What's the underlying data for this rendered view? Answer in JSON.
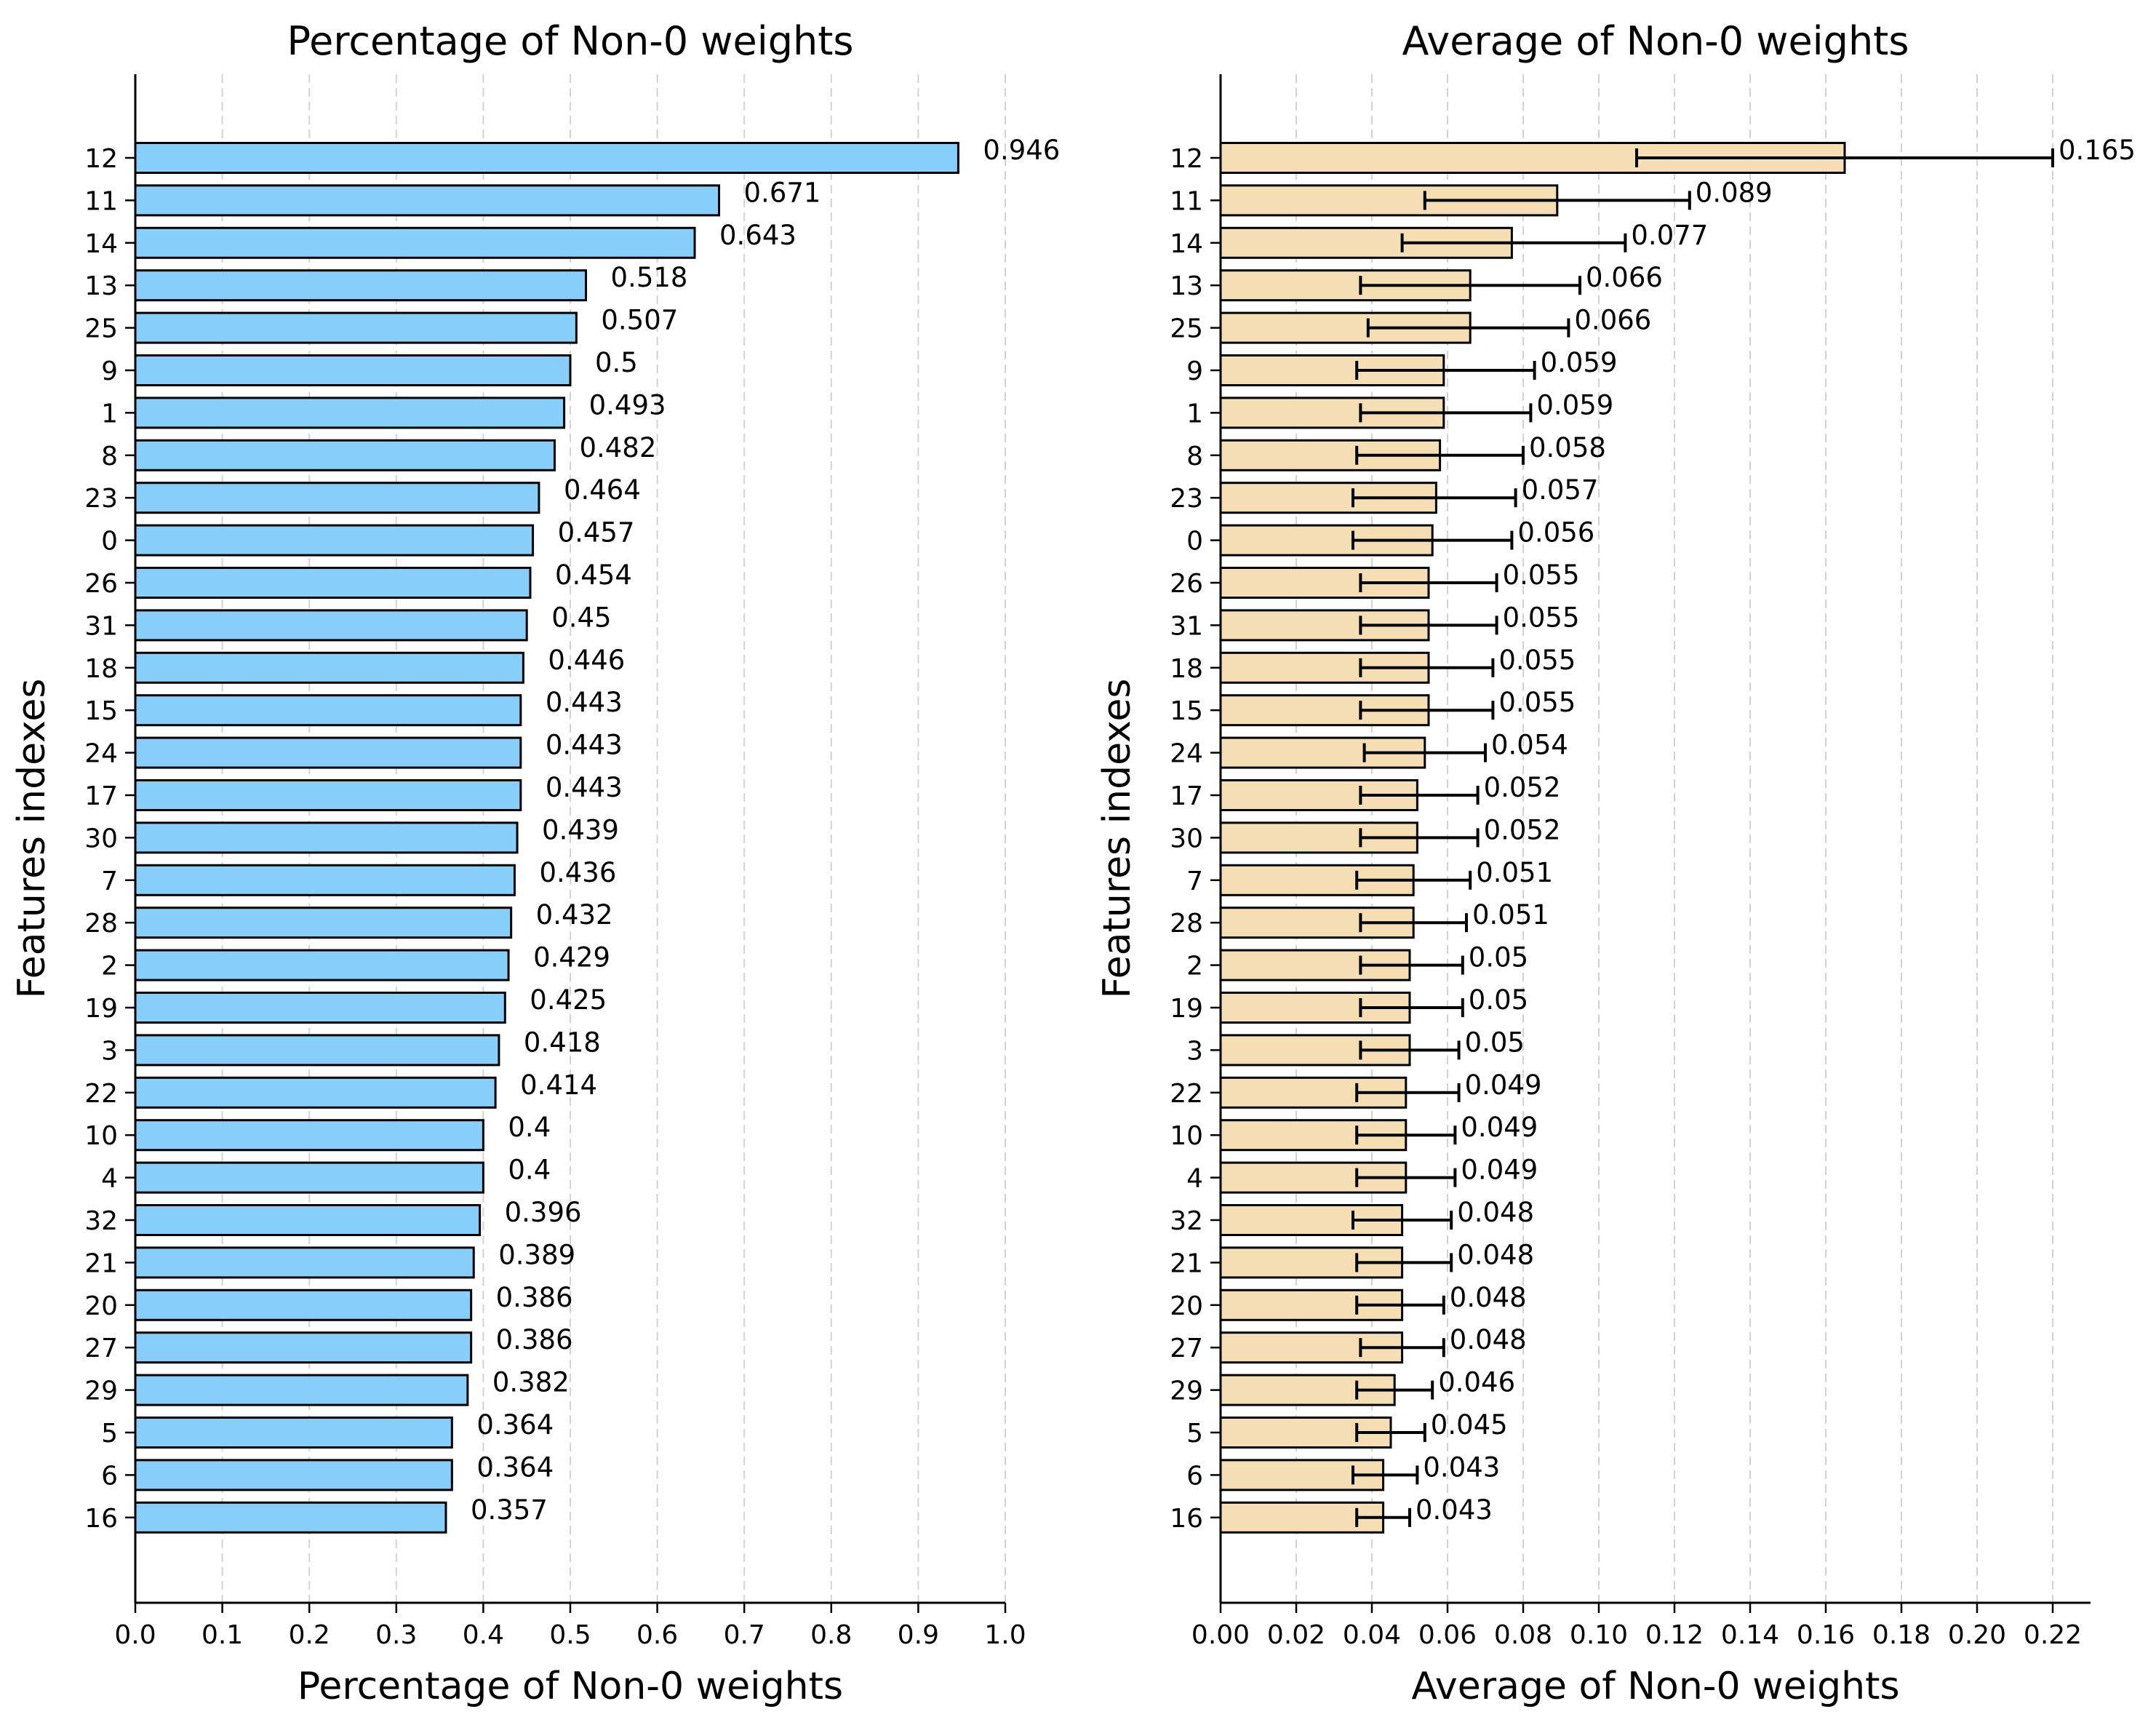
{
  "chart_data": [
    {
      "type": "bar",
      "orientation": "horizontal",
      "title": "Percentage of Non-0 weights",
      "xlabel": "Percentage of Non-0 weights",
      "ylabel": "Features indexes",
      "xlim": [
        0,
        1.0
      ],
      "xticks": [
        0.0,
        0.1,
        0.2,
        0.3,
        0.4,
        0.5,
        0.6,
        0.7,
        0.8,
        0.9,
        1.0
      ],
      "xtick_labels": [
        "0.0",
        "0.1",
        "0.2",
        "0.3",
        "0.4",
        "0.5",
        "0.6",
        "0.7",
        "0.8",
        "0.9",
        "1.0"
      ],
      "grid": "vertical dashed",
      "bar_color": "#87cefa",
      "categories": [
        "12",
        "11",
        "14",
        "13",
        "25",
        "9",
        "1",
        "8",
        "23",
        "0",
        "26",
        "31",
        "18",
        "15",
        "24",
        "17",
        "30",
        "7",
        "28",
        "2",
        "19",
        "3",
        "22",
        "10",
        "4",
        "32",
        "21",
        "20",
        "27",
        "29",
        "5",
        "6",
        "16"
      ],
      "values": [
        0.946,
        0.671,
        0.643,
        0.518,
        0.507,
        0.5,
        0.493,
        0.482,
        0.464,
        0.457,
        0.454,
        0.45,
        0.446,
        0.443,
        0.443,
        0.443,
        0.439,
        0.436,
        0.432,
        0.429,
        0.425,
        0.418,
        0.414,
        0.4,
        0.4,
        0.396,
        0.389,
        0.386,
        0.386,
        0.382,
        0.364,
        0.364,
        0.357
      ],
      "value_labels": [
        "0.946",
        "0.671",
        "0.643",
        "0.518",
        "0.507",
        "0.5",
        "0.493",
        "0.482",
        "0.464",
        "0.457",
        "0.454",
        "0.45",
        "0.446",
        "0.443",
        "0.443",
        "0.443",
        "0.439",
        "0.436",
        "0.432",
        "0.429",
        "0.425",
        "0.418",
        "0.414",
        "0.4",
        "0.4",
        "0.396",
        "0.389",
        "0.386",
        "0.386",
        "0.382",
        "0.364",
        "0.364",
        "0.357"
      ]
    },
    {
      "type": "bar",
      "orientation": "horizontal",
      "title": "Average of Non-0 weights",
      "xlabel": "Average of Non-0 weights",
      "ylabel": "Features indexes",
      "xlim": [
        0,
        0.23
      ],
      "xticks": [
        0.0,
        0.02,
        0.04,
        0.06,
        0.08,
        0.1,
        0.12,
        0.14,
        0.16,
        0.18,
        0.2,
        0.22
      ],
      "xtick_labels": [
        "0.00",
        "0.02",
        "0.04",
        "0.06",
        "0.08",
        "0.10",
        "0.12",
        "0.14",
        "0.16",
        "0.18",
        "0.20",
        "0.22"
      ],
      "grid": "vertical dashed",
      "bar_color": "#f5deb3",
      "error_bars": true,
      "categories": [
        "12",
        "11",
        "14",
        "13",
        "25",
        "9",
        "1",
        "8",
        "23",
        "0",
        "26",
        "31",
        "18",
        "15",
        "24",
        "17",
        "30",
        "7",
        "28",
        "2",
        "19",
        "3",
        "22",
        "10",
        "4",
        "32",
        "21",
        "20",
        "27",
        "29",
        "5",
        "6",
        "16"
      ],
      "values": [
        0.165,
        0.089,
        0.077,
        0.066,
        0.066,
        0.059,
        0.059,
        0.058,
        0.057,
        0.056,
        0.055,
        0.055,
        0.055,
        0.055,
        0.054,
        0.052,
        0.052,
        0.051,
        0.051,
        0.05,
        0.05,
        0.05,
        0.049,
        0.049,
        0.049,
        0.048,
        0.048,
        0.048,
        0.048,
        0.046,
        0.045,
        0.043,
        0.043
      ],
      "value_labels": [
        "0.165",
        "0.089",
        "0.077",
        "0.066",
        "0.066",
        "0.059",
        "0.059",
        "0.058",
        "0.057",
        "0.056",
        "0.055",
        "0.055",
        "0.055",
        "0.055",
        "0.054",
        "0.052",
        "0.052",
        "0.051",
        "0.051",
        "0.05",
        "0.05",
        "0.05",
        "0.049",
        "0.049",
        "0.049",
        "0.048",
        "0.048",
        "0.048",
        "0.048",
        "0.046",
        "0.045",
        "0.043",
        "0.043"
      ],
      "error_low": [
        0.11,
        0.054,
        0.048,
        0.037,
        0.039,
        0.036,
        0.037,
        0.036,
        0.035,
        0.035,
        0.037,
        0.037,
        0.037,
        0.037,
        0.038,
        0.037,
        0.037,
        0.036,
        0.037,
        0.037,
        0.037,
        0.037,
        0.036,
        0.036,
        0.036,
        0.035,
        0.036,
        0.036,
        0.037,
        0.036,
        0.036,
        0.035,
        0.036
      ],
      "error_high": [
        0.22,
        0.124,
        0.107,
        0.095,
        0.092,
        0.083,
        0.082,
        0.08,
        0.078,
        0.077,
        0.073,
        0.073,
        0.072,
        0.072,
        0.07,
        0.068,
        0.068,
        0.066,
        0.065,
        0.064,
        0.064,
        0.063,
        0.063,
        0.062,
        0.062,
        0.061,
        0.061,
        0.059,
        0.059,
        0.056,
        0.054,
        0.052,
        0.05
      ]
    }
  ]
}
